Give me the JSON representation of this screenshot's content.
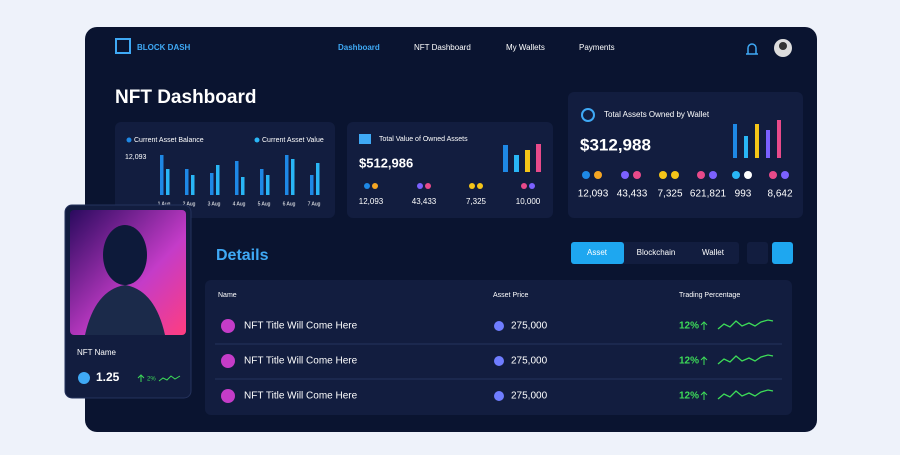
{
  "nav": {
    "brand": "BLOCK DASH",
    "links": [
      "Dashboard",
      "NFT Dashboard",
      "My Wallets",
      "Payments"
    ]
  },
  "page_title": "NFT Dashboard",
  "balance_card": {
    "legend": [
      "Current Asset Balance",
      "Current Asset Value"
    ],
    "y_label": "12,093",
    "days": [
      "1 Aug",
      "2 Aug",
      "3 Aug",
      "4 Aug",
      "5 Aug",
      "6 Aug",
      "7 Aug"
    ]
  },
  "owned_card": {
    "title": "Total Value of Owned Assets",
    "total": "$512,986",
    "stats": [
      "12,093",
      "43,433",
      "7,325",
      "10,000"
    ]
  },
  "wallet_card": {
    "title": "Total Assets Owned by Wallet",
    "total": "$312,988",
    "stats": [
      "12,093",
      "43,433",
      "7,325",
      "621,821",
      "993",
      "8,642"
    ]
  },
  "nft_card": {
    "name": "NFT Name",
    "price": "1.25",
    "change": "2%"
  },
  "details": {
    "title": "Details",
    "tabs": [
      "Asset",
      "Blockchain",
      "Wallet"
    ],
    "columns": [
      "Name",
      "Asset Price",
      "Trading Percentage"
    ],
    "rows": [
      [
        "NFT Title Will Come Here",
        "275,000",
        "12%"
      ],
      [
        "NFT Title Will Come Here",
        "275,000",
        "12%"
      ],
      [
        "NFT Title Will Come Here",
        "275,000",
        "12%"
      ]
    ]
  }
}
